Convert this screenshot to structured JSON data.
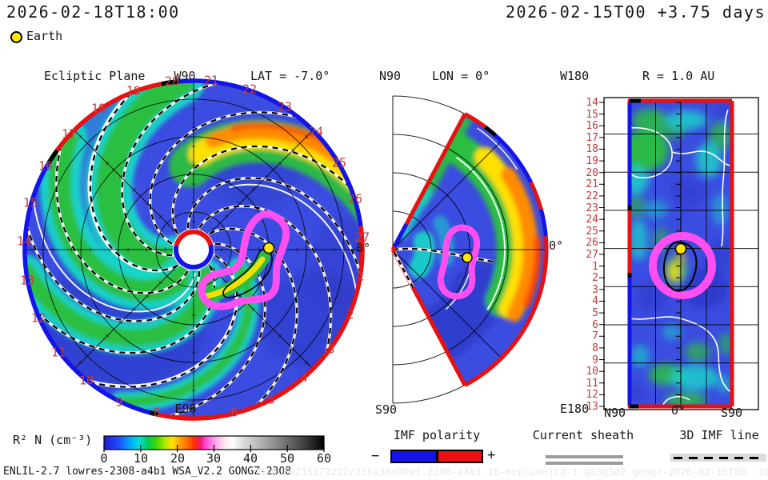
{
  "header": {
    "current_time": "2026-02-18T18:00",
    "run_time": "2026-02-15T00 +3.75 days",
    "earth_label": "Earth"
  },
  "left_plot": {
    "title": "Ecliptic Plane",
    "pole_label": "W90",
    "lat_label": "LAT = -7.0°",
    "bottom_label": "E90",
    "zero_deg_label": "0°",
    "day_labels": [
      "1",
      "2",
      "3",
      "4",
      "5",
      "6",
      "8",
      "9",
      "10",
      "11",
      "12",
      "13",
      "14",
      "15",
      "16",
      "17",
      "18",
      "19",
      "20",
      "21",
      "22",
      "23",
      "24",
      "25",
      "26",
      "27"
    ]
  },
  "middle_plot": {
    "top_label": "N90",
    "title": "LON = 0°",
    "bottom_label": "S90",
    "zero_deg_label": "0°"
  },
  "right_plot": {
    "top_left": "W180",
    "title": "R = 1.0 AU",
    "bottom_left": "E180",
    "x_labels": [
      "N90",
      "0°",
      "S90"
    ],
    "day_labels": [
      "14",
      "15",
      "16",
      "17",
      "18",
      "19",
      "20",
      "21",
      "22",
      "23",
      "24",
      "25",
      "26",
      "27",
      "1",
      "2",
      "3",
      "4",
      "5",
      "6",
      "7",
      "8",
      "9",
      "10",
      "11",
      "12",
      "13"
    ]
  },
  "colorbar": {
    "label": "R² N (cm⁻³)",
    "ticks": [
      "0",
      "10",
      "20",
      "30",
      "40",
      "50",
      "60"
    ]
  },
  "legends": {
    "imf": {
      "title": "IMF polarity",
      "minus": "−",
      "plus": "+"
    },
    "sheath": {
      "title": "Current sheath"
    },
    "line3d": {
      "title": "3D IMF line"
    }
  },
  "footer": {
    "model_info": "ENLIL-2.7 lowres-2308-a4b1 WSA_V2.2 GONGZ-2308",
    "watermark": "UNIQUE0216172222/256x30x90x1.2308-a4b1.16-mcplumn1cd-1.g53q5d2.gongz-2026-02-15T00  2026-02-16"
  },
  "colors": {
    "polarity_negative_blue": "#1414e8",
    "polarity_positive_red": "#e81010",
    "day_label_red": "#c23b3b",
    "cme_contour_magenta": "#ff4ff0",
    "earth_yellow": "#ffe800"
  },
  "chart_data": [
    {
      "type": "heatmap",
      "panel": "ecliptic-plane",
      "title": "Ecliptic Plane",
      "view_label": "LAT = -7.0°",
      "quantity": "R² N (cm⁻³)",
      "scale_range": [
        0,
        60
      ],
      "earth": {
        "r_au": 1.0,
        "longitude_label": "0°"
      },
      "boundary_day_ticks": [
        1,
        2,
        3,
        4,
        5,
        6,
        8,
        9,
        10,
        11,
        12,
        13,
        14,
        15,
        16,
        17,
        18,
        19,
        20,
        21,
        22,
        23,
        24,
        25,
        26,
        27
      ],
      "features": [
        "corotating spiral density arms (green/cyan on blue)",
        "high-density stream (yellow/orange/red) near day 26-1 sector at outer edge",
        "magenta CME ejecta contour enclosing Earth",
        "outer boundary colored by IMF polarity: blue=negative, red=positive"
      ]
    },
    {
      "type": "heatmap",
      "panel": "meridional-plane",
      "title": "LON = 0°",
      "axis_labels": [
        "N90",
        "S90",
        "0°"
      ],
      "quantity": "R² N (cm⁻³)",
      "scale_range": [
        0,
        60
      ],
      "features": [
        "wedge ±60° latitude",
        "high-density band (green/yellow/orange) along outer radii north of equator",
        "magenta CME contour around Earth at 1 AU",
        "red/blue polarity boundary"
      ]
    },
    {
      "type": "heatmap",
      "panel": "radial-surface",
      "title": "R = 1.0 AU",
      "x_axis": [
        "N90",
        "0°",
        "S90"
      ],
      "y_axis_day_ticks": [
        14,
        15,
        16,
        17,
        18,
        19,
        20,
        21,
        22,
        23,
        24,
        25,
        26,
        27,
        1,
        2,
        3,
        4,
        5,
        6,
        7,
        8,
        9,
        10,
        11,
        12,
        13
      ],
      "quantity": "R² N (cm⁻³)",
      "scale_range": [
        0,
        60
      ],
      "features": [
        "latitude-time map at 1 AU",
        "green/cyan density patches",
        "white density contours",
        "magenta CME ring centered on Earth near day 27"
      ]
    }
  ]
}
